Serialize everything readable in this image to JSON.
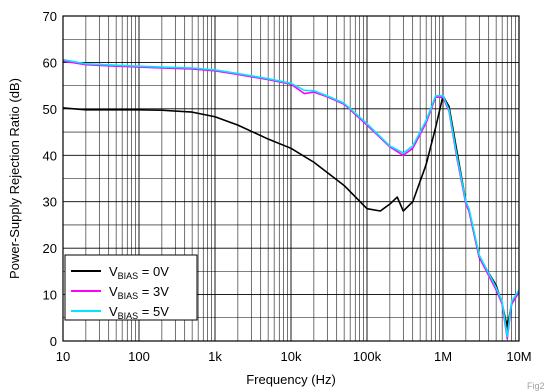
{
  "chart_data": {
    "type": "line",
    "xscale": "log",
    "xlim": [
      10,
      10000000
    ],
    "ylim": [
      0,
      70
    ],
    "xlabel": "Frequency (Hz)",
    "ylabel": "Power-Supply Rejection Ratio (dB)",
    "grid": true,
    "legend_position": "bottom-left",
    "x_tick_labels": [
      "10",
      "100",
      "1k",
      "10k",
      "100k",
      "1M",
      "10M"
    ],
    "y_tick_labels": [
      "0",
      "10",
      "20",
      "30",
      "40",
      "50",
      "60",
      "70"
    ],
    "series": [
      {
        "name_main": "V",
        "name_sub": "BIAS",
        "name_rest": " = 0V",
        "color": "#000000",
        "x": [
          10,
          20,
          50,
          100,
          200,
          500,
          1000,
          2000,
          5000,
          10000,
          20000,
          50000,
          100000,
          150000,
          200000,
          250000,
          300000,
          400000,
          600000,
          800000,
          1000000,
          1200000,
          1500000,
          2000000,
          2200000,
          3000000,
          5000000,
          6000000,
          7000000,
          8000000,
          10000000
        ],
        "y": [
          50.2,
          49.8,
          49.8,
          49.8,
          49.7,
          49.3,
          48.3,
          46.5,
          43.5,
          41.5,
          38.5,
          33.5,
          28.5,
          28.0,
          29.5,
          31.0,
          28.0,
          30.0,
          38.0,
          46.0,
          52.8,
          50.5,
          41.5,
          30.0,
          28.0,
          18.0,
          12.0,
          8.0,
          3.0,
          8.0,
          10.5
        ]
      },
      {
        "name_main": "V",
        "name_sub": "BIAS",
        "name_rest": " = 3V",
        "color": "#ff00ff",
        "x": [
          10,
          20,
          50,
          100,
          200,
          500,
          1000,
          2000,
          5000,
          10000,
          15000,
          20000,
          30000,
          50000,
          100000,
          200000,
          300000,
          400000,
          600000,
          800000,
          1000000,
          1200000,
          1500000,
          2000000,
          2200000,
          3000000,
          5000000,
          6000000,
          7000000,
          8000000,
          10000000
        ],
        "y": [
          60.3,
          59.5,
          59.2,
          59.0,
          58.8,
          58.6,
          58.2,
          57.4,
          56.3,
          55.3,
          53.3,
          53.6,
          52.6,
          51.0,
          46.5,
          41.8,
          40.0,
          41.5,
          47.0,
          52.5,
          52.5,
          49.5,
          40.0,
          29.5,
          28.0,
          18.0,
          11.0,
          8.0,
          0.5,
          8.0,
          10.5
        ]
      },
      {
        "name_main": "V",
        "name_sub": "BIAS",
        "name_rest": " = 5V",
        "color": "#00e5ff",
        "x": [
          10,
          20,
          50,
          100,
          200,
          500,
          1000,
          2000,
          5000,
          10000,
          15000,
          20000,
          30000,
          50000,
          100000,
          200000,
          300000,
          400000,
          600000,
          800000,
          1000000,
          1200000,
          1500000,
          2000000,
          2200000,
          3000000,
          5000000,
          6000000,
          7000000,
          8000000,
          10000000
        ],
        "y": [
          60.6,
          59.7,
          59.4,
          59.2,
          59.0,
          58.8,
          58.4,
          57.6,
          56.5,
          55.5,
          54.0,
          53.9,
          52.8,
          51.2,
          46.8,
          42.0,
          40.5,
          42.0,
          47.5,
          52.8,
          52.8,
          49.8,
          40.5,
          30.0,
          28.5,
          18.5,
          11.5,
          8.5,
          1.0,
          8.5,
          11.0
        ]
      }
    ],
    "watermark": "Fig2"
  }
}
